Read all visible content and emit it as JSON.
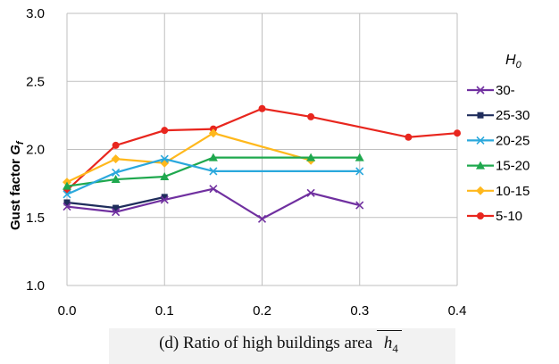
{
  "chart_data": {
    "type": "line",
    "xlabel": "",
    "ylabel": "Gust factor G_f",
    "xlim": [
      0.0,
      0.4
    ],
    "ylim": [
      1.0,
      3.0
    ],
    "x_ticks": [
      "0.0",
      "0.1",
      "0.2",
      "0.3",
      "0.4"
    ],
    "y_ticks": [
      "1.0",
      "1.5",
      "2.0",
      "2.5",
      "3.0"
    ],
    "grid": "both",
    "legend_title": "H0",
    "legend_position": "right",
    "series": [
      {
        "name": "30-",
        "color": "#7030a0",
        "marker": "x",
        "x": [
          0.0,
          0.05,
          0.1,
          0.15,
          0.2,
          0.25,
          0.3
        ],
        "y": [
          1.58,
          1.54,
          1.63,
          1.71,
          1.49,
          1.68,
          1.59
        ]
      },
      {
        "name": "25-30",
        "color": "#1f2d5c",
        "marker": "square",
        "x": [
          0.0,
          0.05,
          0.1
        ],
        "y": [
          1.61,
          1.57,
          1.65
        ]
      },
      {
        "name": "20-25",
        "color": "#2aa8dc",
        "marker": "x",
        "x": [
          0.0,
          0.05,
          0.1,
          0.15,
          0.3
        ],
        "y": [
          1.67,
          1.83,
          1.93,
          1.84,
          1.84
        ]
      },
      {
        "name": "15-20",
        "color": "#1fa84e",
        "marker": "triangle",
        "x": [
          0.0,
          0.05,
          0.1,
          0.15,
          0.25,
          0.3
        ],
        "y": [
          1.73,
          1.78,
          1.8,
          1.94,
          1.94,
          1.94
        ]
      },
      {
        "name": "10-15",
        "color": "#ffb81c",
        "marker": "diamond",
        "x": [
          0.0,
          0.05,
          0.1,
          0.15,
          0.25
        ],
        "y": [
          1.76,
          1.93,
          1.9,
          2.12,
          1.92
        ]
      },
      {
        "name": "5-10",
        "color": "#e8261e",
        "marker": "circle",
        "x": [
          0.0,
          0.05,
          0.1,
          0.15,
          0.2,
          0.25,
          0.35,
          0.4
        ],
        "y": [
          1.7,
          2.03,
          2.14,
          2.15,
          2.3,
          2.24,
          2.09,
          2.12
        ]
      }
    ]
  },
  "caption": {
    "text": "(d) Ratio of high buildings area",
    "symbol": "h",
    "subscript": "4"
  }
}
